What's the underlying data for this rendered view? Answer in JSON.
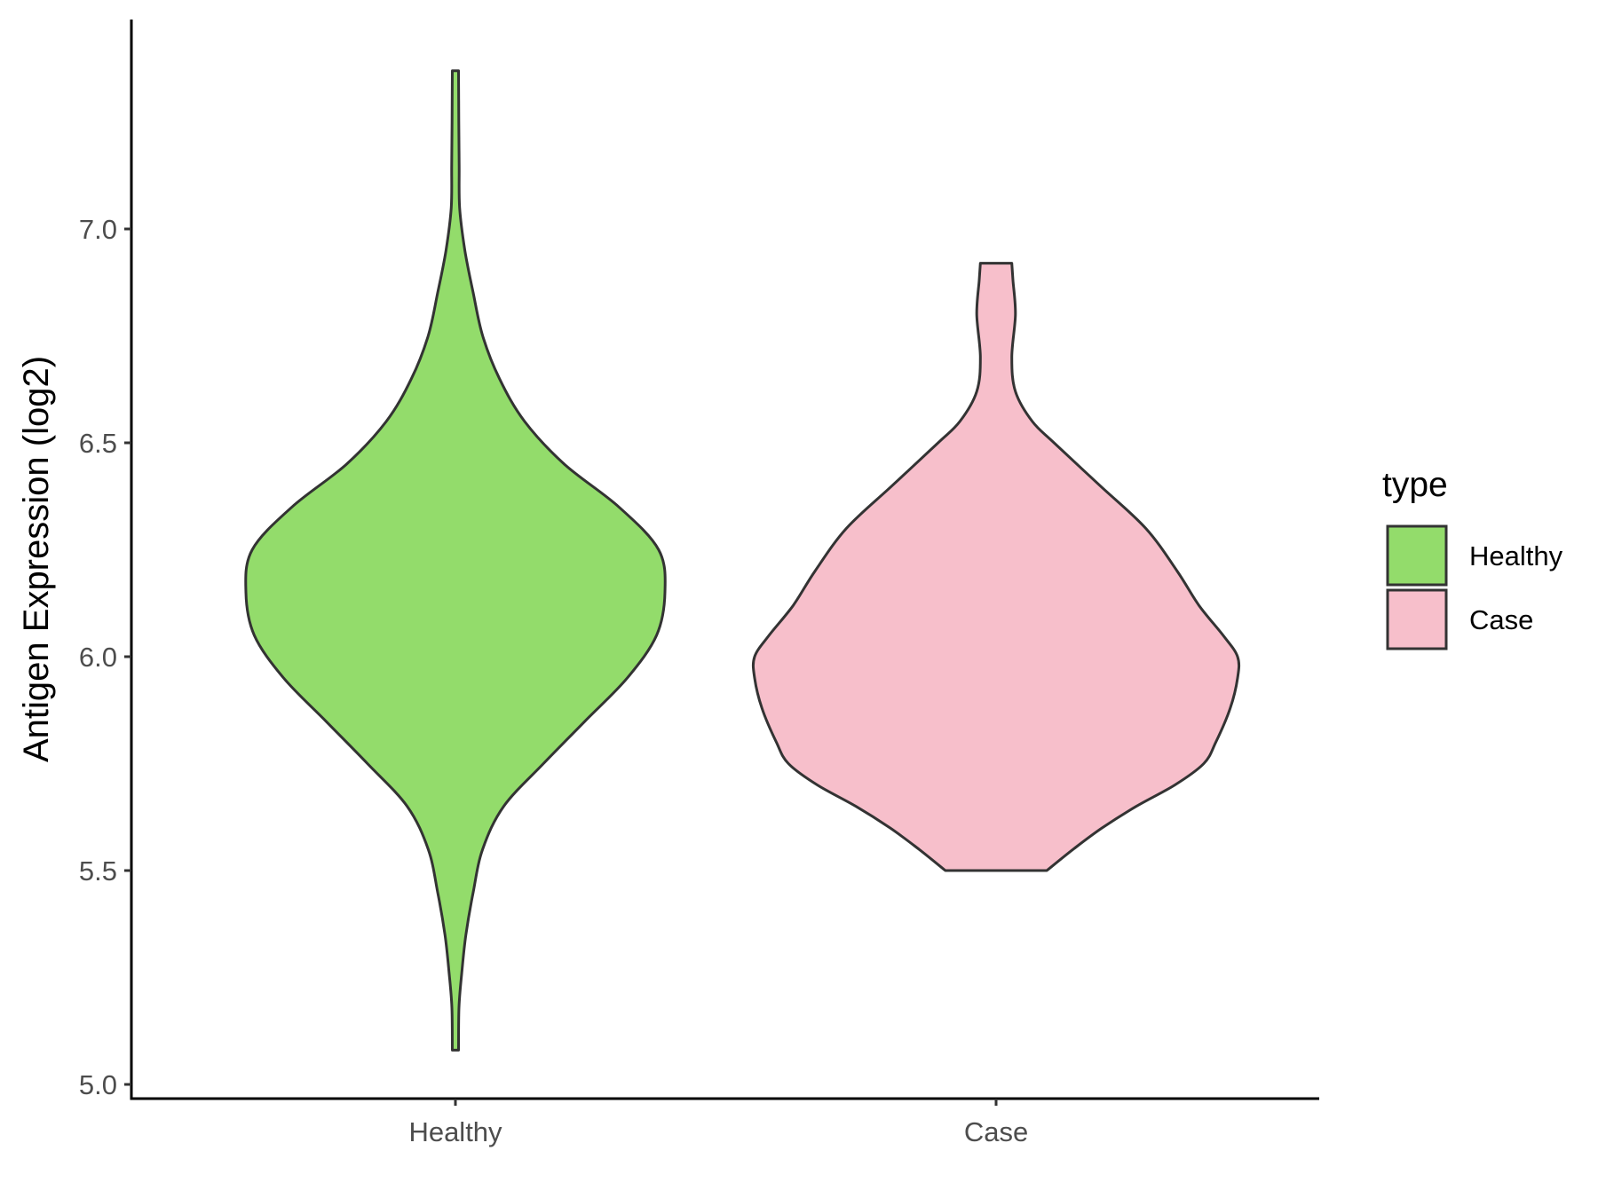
{
  "chart_data": {
    "type": "violin",
    "title": "",
    "xlabel": "",
    "ylabel": "Antigen Expression (log2)",
    "ylim": [
      4.97,
      7.5
    ],
    "yticks": [
      5.0,
      5.5,
      6.0,
      6.5,
      7.0
    ],
    "ytick_labels": [
      "5.0",
      "5.5",
      "6.0",
      "6.5",
      "7.0"
    ],
    "categories": [
      "Healthy",
      "Case"
    ],
    "grid": false,
    "legend": {
      "title": "type",
      "placement": "right",
      "entries": [
        {
          "label": "Healthy",
          "color": "#93dc6b"
        },
        {
          "label": "Case",
          "color": "#f7bfcb"
        }
      ]
    },
    "series": [
      {
        "name": "Healthy",
        "color": "#93dc6b",
        "min": 5.08,
        "max": 7.37,
        "density": [
          [
            5.08,
            0.015
          ],
          [
            5.18,
            0.017
          ],
          [
            5.26,
            0.03
          ],
          [
            5.35,
            0.05
          ],
          [
            5.45,
            0.085
          ],
          [
            5.55,
            0.13
          ],
          [
            5.65,
            0.23
          ],
          [
            5.75,
            0.42
          ],
          [
            5.85,
            0.62
          ],
          [
            5.95,
            0.82
          ],
          [
            6.05,
            0.96
          ],
          [
            6.15,
            1.0
          ],
          [
            6.25,
            0.97
          ],
          [
            6.35,
            0.78
          ],
          [
            6.45,
            0.52
          ],
          [
            6.55,
            0.33
          ],
          [
            6.65,
            0.21
          ],
          [
            6.75,
            0.13
          ],
          [
            6.85,
            0.085
          ],
          [
            6.95,
            0.045
          ],
          [
            7.05,
            0.02
          ],
          [
            7.15,
            0.018
          ],
          [
            7.25,
            0.016
          ],
          [
            7.37,
            0.015
          ]
        ]
      },
      {
        "name": "Case",
        "color": "#f7bfcb",
        "min": 5.5,
        "max": 6.92,
        "density": [
          [
            5.5,
            0.21
          ],
          [
            5.55,
            0.32
          ],
          [
            5.6,
            0.44
          ],
          [
            5.65,
            0.58
          ],
          [
            5.7,
            0.74
          ],
          [
            5.75,
            0.86
          ],
          [
            5.8,
            0.91
          ],
          [
            5.88,
            0.97
          ],
          [
            5.95,
            1.0
          ],
          [
            6.0,
            1.0
          ],
          [
            6.05,
            0.94
          ],
          [
            6.12,
            0.84
          ],
          [
            6.2,
            0.75
          ],
          [
            6.3,
            0.62
          ],
          [
            6.4,
            0.43
          ],
          [
            6.5,
            0.24
          ],
          [
            6.55,
            0.15
          ],
          [
            6.62,
            0.08
          ],
          [
            6.7,
            0.065
          ],
          [
            6.8,
            0.08
          ],
          [
            6.88,
            0.07
          ],
          [
            6.92,
            0.065
          ]
        ]
      }
    ]
  }
}
